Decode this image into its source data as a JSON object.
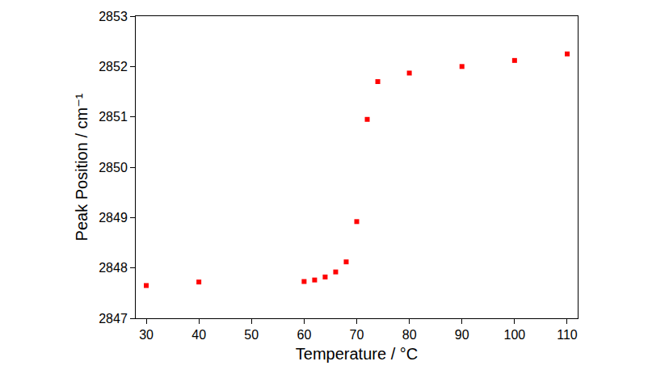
{
  "chart_data": {
    "type": "scatter",
    "x_label": "Temperature / °C",
    "y_label": "Peak Position / cm⁻¹",
    "x": [
      30,
      40,
      60,
      62,
      64,
      66,
      68,
      70,
      72,
      74,
      80,
      90,
      100,
      110
    ],
    "values": [
      2847.65,
      2847.72,
      2847.73,
      2847.76,
      2847.82,
      2847.92,
      2848.12,
      2848.92,
      2850.95,
      2851.7,
      2851.87,
      2852.0,
      2852.12,
      2852.25
    ],
    "color": "#ff0000",
    "marker": "square",
    "xlim": [
      28,
      112
    ],
    "xticks": [
      30,
      40,
      50,
      60,
      70,
      80,
      90,
      100,
      110
    ],
    "ylim": [
      2847,
      2853
    ],
    "yticks": [
      2847,
      2848,
      2849,
      2850,
      2851,
      2852,
      2853
    ],
    "grid": false
  }
}
